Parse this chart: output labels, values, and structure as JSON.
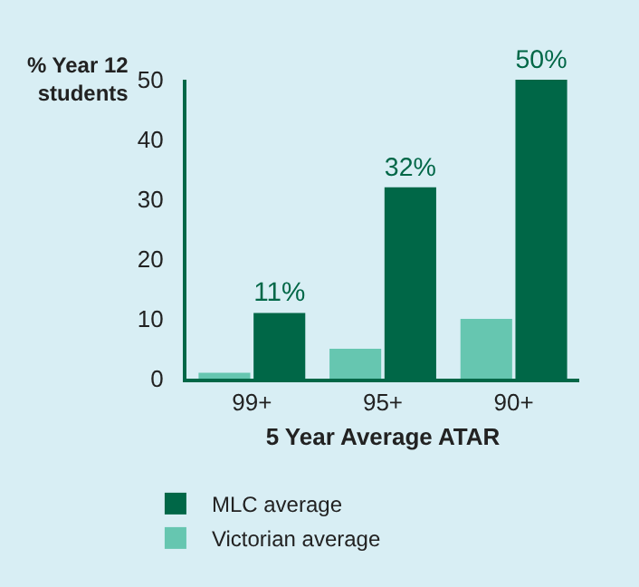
{
  "chart_data": {
    "type": "bar",
    "xlabel": "5 Year Average ATAR",
    "ylabel": "% Year 12\nstudents",
    "categories": [
      "99+",
      "95+",
      "90+"
    ],
    "series": [
      {
        "name": "Victorian average",
        "color": "#66c6b0",
        "values": [
          1,
          5,
          10
        ]
      },
      {
        "name": "MLC average",
        "color": "#006747",
        "values": [
          11,
          32,
          50
        ],
        "value_labels": [
          "11%",
          "32%",
          "50%"
        ]
      }
    ],
    "ylim": [
      0,
      50
    ],
    "yticks": [
      0,
      10,
      20,
      30,
      40,
      50
    ],
    "grid": false,
    "legend": "bottom left"
  }
}
